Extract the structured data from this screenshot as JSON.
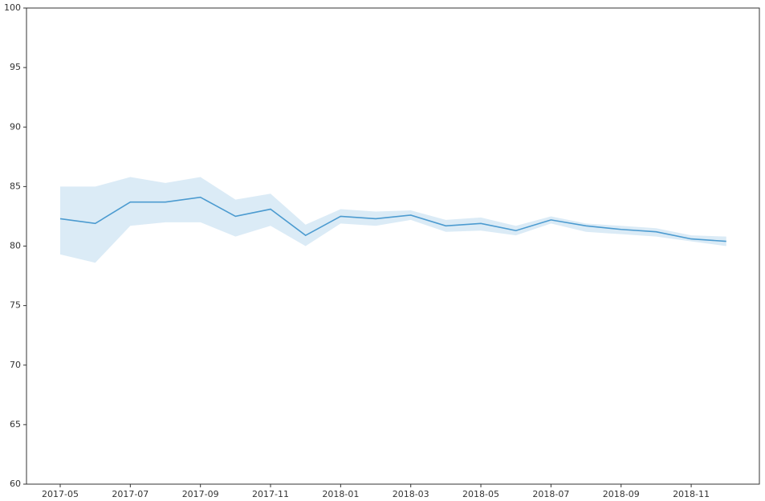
{
  "chart_data": {
    "type": "line",
    "x": [
      "2017-05",
      "2017-06",
      "2017-07",
      "2017-08",
      "2017-09",
      "2017-10",
      "2017-11",
      "2017-12",
      "2018-01",
      "2018-02",
      "2018-03",
      "2018-04",
      "2018-05",
      "2018-06",
      "2018-07",
      "2018-08",
      "2018-09",
      "2018-10",
      "2018-11",
      "2018-12"
    ],
    "series": [
      {
        "color": "#4c9bd0",
        "values": [
          82.3,
          81.9,
          83.7,
          83.7,
          84.1,
          82.5,
          83.1,
          80.9,
          82.5,
          82.3,
          82.6,
          81.7,
          81.9,
          81.3,
          82.2,
          81.7,
          81.4,
          81.2,
          80.6,
          80.4
        ],
        "upper": [
          85.0,
          85.0,
          85.8,
          85.3,
          85.8,
          83.9,
          84.4,
          81.8,
          83.1,
          82.9,
          83.0,
          82.2,
          82.4,
          81.7,
          82.5,
          81.9,
          81.7,
          81.5,
          80.9,
          80.8
        ],
        "lower": [
          79.3,
          78.6,
          81.7,
          82.0,
          82.0,
          80.8,
          81.7,
          80.0,
          81.9,
          81.7,
          82.2,
          81.2,
          81.3,
          80.9,
          81.9,
          81.2,
          81.0,
          80.8,
          80.4,
          80.0
        ]
      }
    ],
    "ylim": [
      60,
      100
    ],
    "yticks": [
      60,
      65,
      70,
      75,
      80,
      85,
      90,
      95,
      100
    ],
    "xticks": [
      "2017-05",
      "2017-07",
      "2017-09",
      "2017-11",
      "2018-01",
      "2018-03",
      "2018-05",
      "2018-07",
      "2018-09",
      "2018-11"
    ]
  }
}
